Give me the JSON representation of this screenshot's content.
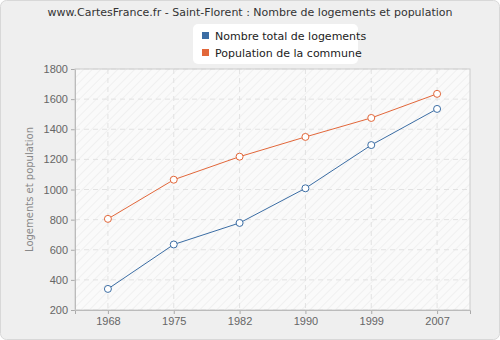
{
  "chart_data": {
    "type": "line",
    "title": "www.CartesFrance.fr - Saint-Florent : Nombre de logements et population",
    "y_label": "Logements et population",
    "categories": [
      "1968",
      "1975",
      "1982",
      "1990",
      "1999",
      "2007"
    ],
    "series": [
      {
        "name": "Nombre total de logements",
        "color": "#3b6da4",
        "marker": "circle",
        "values": [
          340,
          635,
          778,
          1008,
          1295,
          1535
        ]
      },
      {
        "name": "Population de la commune",
        "color": "#e2673a",
        "marker": "circle",
        "values": [
          805,
          1065,
          1218,
          1349,
          1475,
          1635
        ]
      }
    ],
    "ylim": [
      200,
      1800
    ],
    "yticks": [
      200,
      400,
      600,
      800,
      1000,
      1200,
      1400,
      1600,
      1800
    ],
    "grid": true,
    "legend": "top"
  }
}
